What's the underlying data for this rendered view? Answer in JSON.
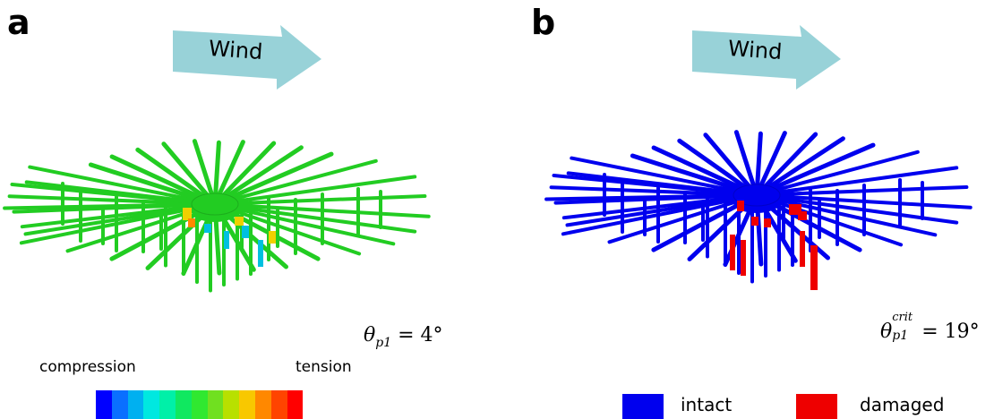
{
  "panels": {
    "a": {
      "letter": "a",
      "wind_label": "Wind",
      "angle": {
        "symbol": "θ",
        "subscript": "p1",
        "superscript": "",
        "value": "= 4°"
      },
      "colorbar": {
        "left_label": "compression",
        "right_label": "tension",
        "colors": [
          "#0000ff",
          "#0a6fff",
          "#00b0f0",
          "#00e8e0",
          "#00f0a8",
          "#10e860",
          "#30e830",
          "#70e020",
          "#b8e000",
          "#f8c800",
          "#ff8800",
          "#ff4400",
          "#ff0000"
        ]
      },
      "member_color": "#22cc22"
    },
    "b": {
      "letter": "b",
      "wind_label": "Wind",
      "angle": {
        "symbol": "θ",
        "subscript": "p1",
        "superscript": "crit",
        "value": "= 19°"
      },
      "legend": [
        {
          "label": "intact",
          "color": "#0000ee"
        },
        {
          "label": "damaged",
          "color": "#ee0000"
        }
      ],
      "member_color": "#0000ee"
    }
  },
  "wind_arrow_color": "#98d2d8"
}
